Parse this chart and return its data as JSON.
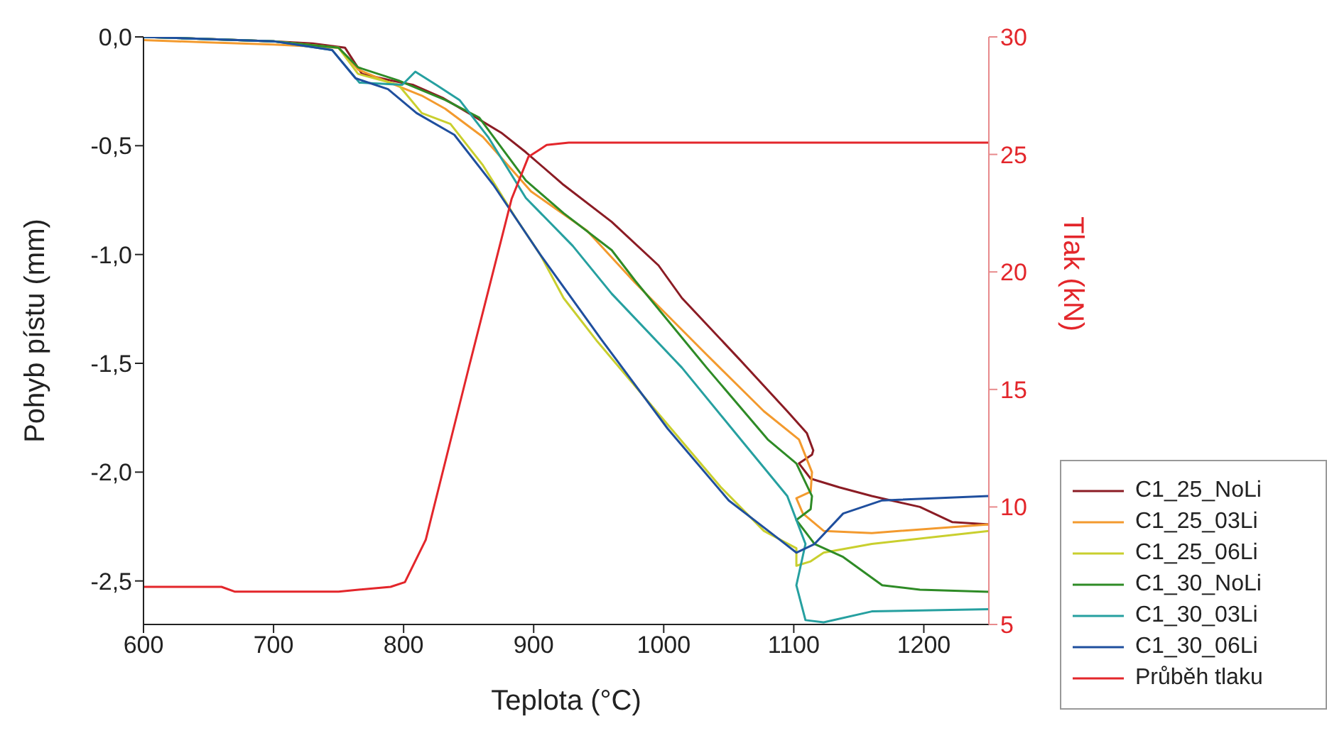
{
  "chart_data": {
    "type": "line",
    "xlabel": "Teplota (°C)",
    "ylabel": "Pohyb pístu (mm)",
    "y2label": "Tlak (kN)",
    "xlim": [
      600,
      1250
    ],
    "xticks": [
      600,
      700,
      800,
      900,
      1000,
      1100,
      1200
    ],
    "ylim": [
      -2.7,
      0
    ],
    "yticks": [
      {
        "value": 0,
        "label": "0,0"
      },
      {
        "value": -0.5,
        "label": "-0,5"
      },
      {
        "value": -1,
        "label": "-1,0"
      },
      {
        "value": -1.5,
        "label": "-1,5"
      },
      {
        "value": -2,
        "label": "-2,0"
      },
      {
        "value": -2.5,
        "label": "-2,5"
      }
    ],
    "y2lim": [
      5,
      30
    ],
    "y2ticks": [
      5,
      10,
      15,
      20,
      25,
      30
    ],
    "grid": false,
    "legend": "bottom right",
    "marker": "none",
    "line_style": "solid",
    "series": [
      {
        "name": "C1_25_NoLi",
        "color": "#8b1c24",
        "x": [
          600,
          650,
          700,
          730,
          755,
          768,
          790,
          807,
          830,
          850,
          875,
          894,
          923,
          960,
          996,
          1014,
          1058,
          1095,
          1110,
          1115,
          1114,
          1104,
          1113,
          1135,
          1160,
          1197,
          1222,
          1250
        ],
        "values": [
          0,
          -0.01,
          -0.02,
          -0.03,
          -0.05,
          -0.17,
          -0.2,
          -0.22,
          -0.28,
          -0.35,
          -0.44,
          -0.53,
          -0.68,
          -0.85,
          -1.05,
          -1.2,
          -1.48,
          -1.72,
          -1.82,
          -1.9,
          -1.92,
          -1.96,
          -2.03,
          -2.07,
          -2.11,
          -2.16,
          -2.23,
          -2.24
        ]
      },
      {
        "name": "C1_25_03Li",
        "color": "#f39a2e",
        "x": [
          600,
          650,
          700,
          750,
          765,
          785,
          814,
          832,
          861,
          898,
          941,
          978,
          1033,
          1077,
          1104,
          1114,
          1113,
          1102,
          1107,
          1123,
          1160,
          1250
        ],
        "values": [
          -0.015,
          -0.025,
          -0.035,
          -0.05,
          -0.15,
          -0.2,
          -0.27,
          -0.33,
          -0.46,
          -0.71,
          -0.89,
          -1.13,
          -1.46,
          -1.72,
          -1.85,
          -2.0,
          -2.09,
          -2.12,
          -2.19,
          -2.27,
          -2.28,
          -2.24
        ]
      },
      {
        "name": "C1_25_06Li",
        "color": "#c9cf2e",
        "x": [
          600,
          700,
          750,
          765,
          796,
          814,
          836,
          861,
          886,
          905,
          923,
          949,
          1000,
          1044,
          1077,
          1102,
          1102,
          1113,
          1123,
          1160,
          1250
        ],
        "values": [
          0,
          -0.02,
          -0.05,
          -0.17,
          -0.22,
          -0.35,
          -0.4,
          -0.59,
          -0.83,
          -1.0,
          -1.2,
          -1.4,
          -1.76,
          -2.07,
          -2.27,
          -2.35,
          -2.43,
          -2.41,
          -2.37,
          -2.33,
          -2.27
        ]
      },
      {
        "name": "C1_30_NoLi",
        "color": "#2e8b26",
        "x": [
          600,
          700,
          750,
          765,
          796,
          832,
          858,
          894,
          923,
          960,
          978,
          1033,
          1080,
          1102,
          1114,
          1113,
          1102,
          1116,
          1138,
          1168,
          1197,
          1250
        ],
        "values": [
          0,
          -0.02,
          -0.05,
          -0.14,
          -0.2,
          -0.29,
          -0.37,
          -0.66,
          -0.81,
          -0.98,
          -1.12,
          -1.52,
          -1.85,
          -1.96,
          -2.11,
          -2.17,
          -2.22,
          -2.33,
          -2.39,
          -2.52,
          -2.54,
          -2.55
        ]
      },
      {
        "name": "C1_30_03Li",
        "color": "#26a0a0",
        "x": [
          600,
          700,
          745,
          766,
          799,
          809,
          825,
          843,
          865,
          894,
          930,
          960,
          1014,
          1062,
          1095,
          1109,
          1102,
          1109,
          1123,
          1160,
          1250
        ],
        "values": [
          0,
          -0.02,
          -0.06,
          -0.21,
          -0.22,
          -0.16,
          -0.22,
          -0.29,
          -0.46,
          -0.74,
          -0.96,
          -1.18,
          -1.52,
          -1.87,
          -2.11,
          -2.33,
          -2.52,
          -2.68,
          -2.69,
          -2.64,
          -2.63
        ]
      },
      {
        "name": "C1_30_06Li",
        "color": "#1f4f9e",
        "x": [
          600,
          700,
          745,
          763,
          788,
          810,
          839,
          869,
          905,
          952,
          1003,
          1050,
          1087,
          1102,
          1116,
          1138,
          1168,
          1250
        ],
        "values": [
          0,
          -0.02,
          -0.06,
          -0.19,
          -0.24,
          -0.35,
          -0.45,
          -0.68,
          -1.0,
          -1.39,
          -1.8,
          -2.13,
          -2.3,
          -2.37,
          -2.33,
          -2.19,
          -2.13,
          -2.11
        ]
      },
      {
        "name": "Průběh tlaku",
        "color": "#e3262b",
        "axis": "y2",
        "x": [
          600,
          660,
          670,
          750,
          790,
          801,
          817,
          850,
          883,
          896,
          910,
          927,
          1250
        ],
        "values": [
          6.6,
          6.6,
          6.4,
          6.4,
          6.6,
          6.8,
          8.6,
          15.9,
          23.1,
          24.9,
          25.4,
          25.5,
          25.5
        ]
      }
    ]
  }
}
